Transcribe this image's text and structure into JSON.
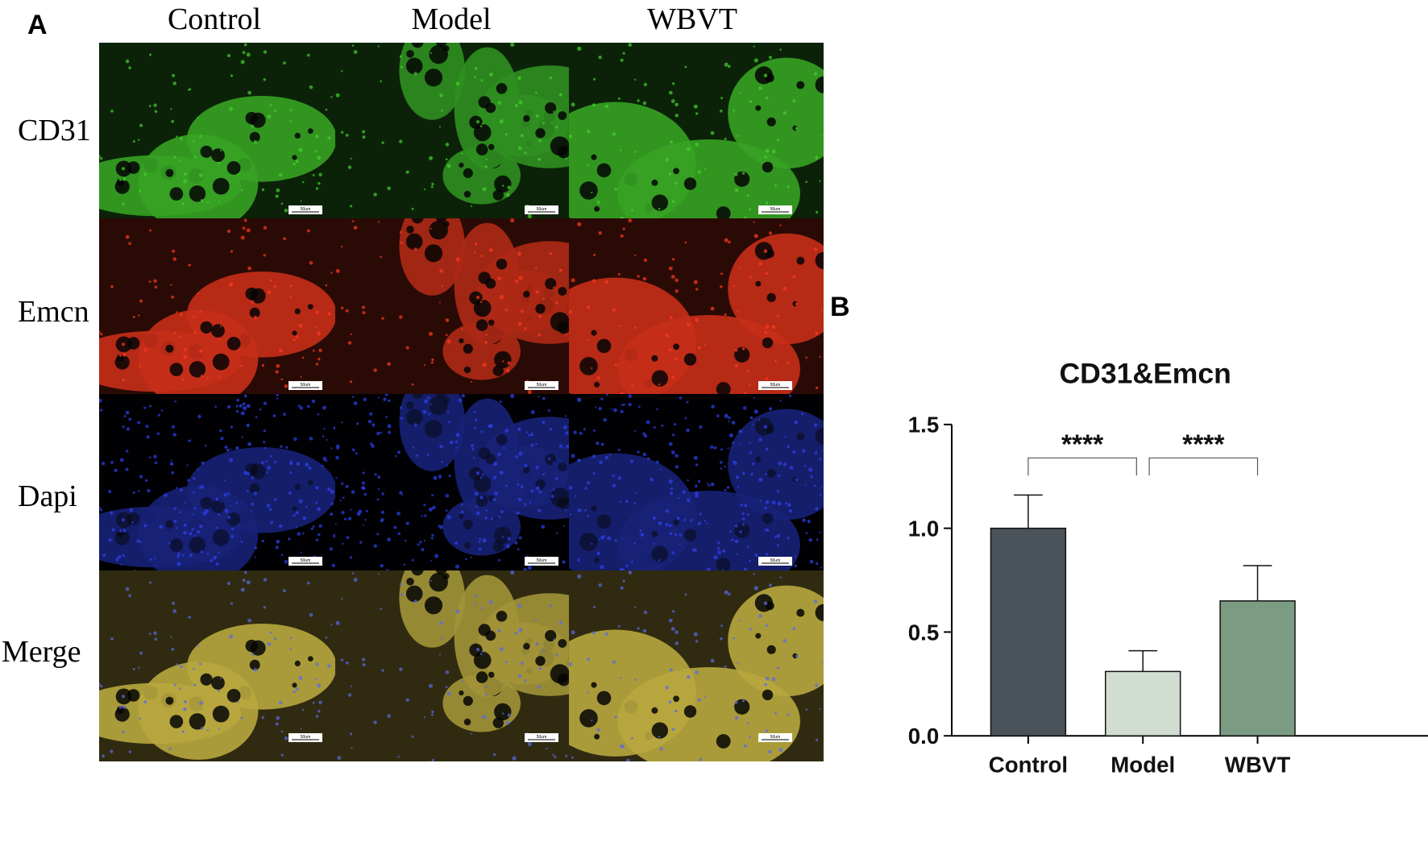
{
  "panel_a": {
    "label": "A",
    "columns": [
      "Control",
      "Model",
      "WBVT"
    ],
    "rows": [
      "CD31",
      "Emcn",
      "Dapi",
      "Merge"
    ],
    "scale_bar_label": "50um",
    "channel_colors": {
      "CD31": "#3fbf2a",
      "Emcn": "#e8361c",
      "Dapi": "#2a3cd8",
      "Merge": "#d8c44a"
    }
  },
  "panel_b": {
    "label": "B"
  },
  "chart_data": {
    "type": "bar",
    "title": "CD31&Emcn",
    "categories": [
      "Control",
      "Model",
      "WBVT"
    ],
    "values": [
      1.0,
      0.31,
      0.65
    ],
    "errors": [
      0.16,
      0.1,
      0.17
    ],
    "bar_colors": [
      "#4a525a",
      "#d2ddd2",
      "#7b9c83"
    ],
    "ylim": [
      0,
      1.5
    ],
    "yticks": [
      "0.0",
      "0.5",
      "1.0",
      "1.5"
    ],
    "xlabel": "",
    "ylabel": "",
    "significance": [
      {
        "from": "Control",
        "to": "Model",
        "label": "****"
      },
      {
        "from": "Model",
        "to": "WBVT",
        "label": "****"
      }
    ]
  }
}
